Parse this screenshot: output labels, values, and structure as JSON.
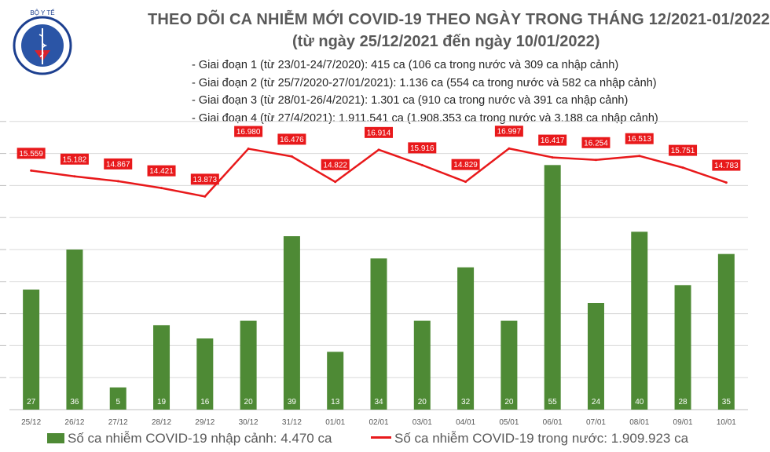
{
  "header": {
    "title": "THEO DÕI CA NHIỄM MỚI COVID-19 THEO NGÀY TRONG THÁNG 12/2021-01/2022",
    "subtitle": "(từ ngày 25/12/2021 đến ngày 10/01/2022)",
    "logo_text": "BỘ Y TẾ"
  },
  "phases": [
    "- Giai đoạn 1 (từ 23/01-24/7/2020): 415 ca (106 ca trong nước và 309 ca nhập cảnh)",
    "- Giai đoạn 2 (từ 25/7/2020-27/01/2021): 1.136 ca (554 ca trong nước và 582 ca nhập cảnh)",
    "- Giai đoạn 3 (từ 28/01-26/4/2021): 1.301 ca (910 ca trong nước và 391 ca nhập cảnh)",
    "- Giai đoạn 4 (từ 27/4/2021): 1.911.541 ca (1.908.353 ca trong nước và 3.188 ca nhập cảnh)"
  ],
  "legend": {
    "bar_label": "Số ca nhiễm COVID-19 nhập cảnh: 4.470 ca",
    "line_label": "Số ca nhiễm COVID-19 trong nước: 1.909.923 ca"
  },
  "colors": {
    "bar": "#4e8a35",
    "line": "#e8191b",
    "line_label_bg": "#e8191b",
    "grid": "#d9d9d9",
    "axis_text": "#595959"
  },
  "chart_data": {
    "type": "bar",
    "categories": [
      "25/12",
      "26/12",
      "27/12",
      "28/12",
      "29/12",
      "30/12",
      "31/12",
      "01/01",
      "02/01",
      "03/01",
      "04/01",
      "05/01",
      "06/01",
      "07/01",
      "08/01",
      "09/01",
      "10/01"
    ],
    "series": [
      {
        "name": "Số ca nhiễm COVID-19 nhập cảnh: 4.470 ca",
        "type": "bar",
        "values": [
          27,
          36,
          5,
          19,
          16,
          20,
          39,
          13,
          34,
          20,
          32,
          20,
          55,
          24,
          40,
          28,
          35
        ],
        "labels": [
          "27",
          "36",
          "5",
          "19",
          "16",
          "20",
          "39",
          "13",
          "34",
          "20",
          "32",
          "20",
          "55",
          "24",
          "40",
          "28",
          "35"
        ]
      },
      {
        "name": "Số ca nhiễm COVID-19 trong nước: 1.909.923 ca",
        "type": "line",
        "values": [
          15559,
          15182,
          14867,
          14421,
          13873,
          16980,
          16476,
          14822,
          16914,
          15916,
          14829,
          16997,
          16417,
          16254,
          16513,
          15751,
          14783
        ],
        "labels": [
          "15.559",
          "15.182",
          "14.867",
          "14.421",
          "13.873",
          "16.980",
          "16.476",
          "14.822",
          "16.914",
          "15.916",
          "14.829",
          "16.997",
          "16.417",
          "16.254",
          "16.513",
          "15.751",
          "14.783"
        ]
      }
    ],
    "bar_ylim": [
      0,
      60
    ],
    "line_ylim": [
      0,
      19000
    ],
    "grid": true,
    "legend_position": "bottom"
  }
}
